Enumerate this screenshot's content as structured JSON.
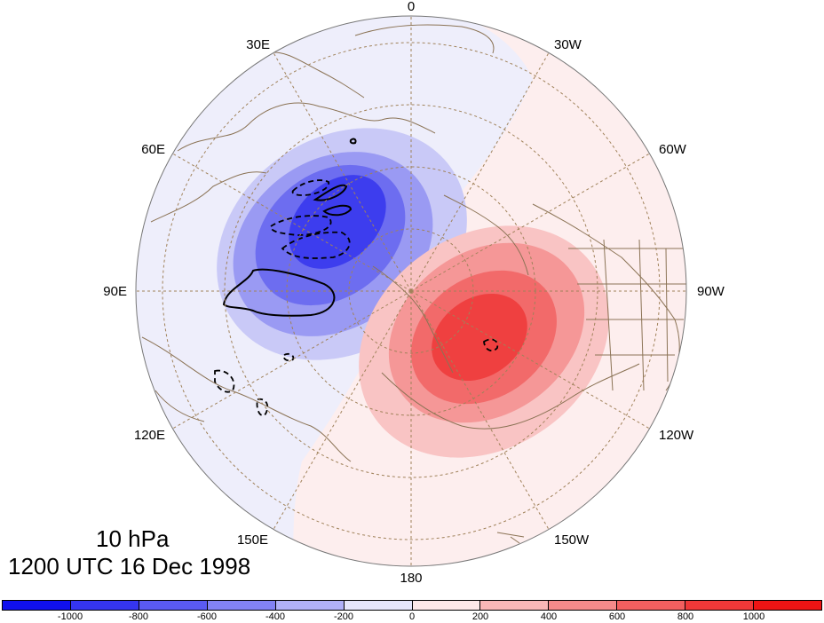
{
  "title": {
    "level": "10 hPa",
    "time": "1200 UTC 16 Dec 1998"
  },
  "map": {
    "projection": "polar stereographic",
    "center": "North Pole",
    "longitude_labels": [
      "0",
      "30W",
      "60W",
      "90W",
      "120W",
      "150W",
      "180",
      "150E",
      "120E",
      "90E",
      "60E",
      "30E"
    ],
    "background_color": "#eeeefb",
    "coastline_color": "#8b7355",
    "graticule_color": "#a0825a"
  },
  "legend": {
    "colors": [
      "#1010ee",
      "#3535f0",
      "#5a5af2",
      "#8282f5",
      "#b0b0f8",
      "#e6e6fb",
      "#fde9e9",
      "#f9b7b7",
      "#f58a8a",
      "#f25f5f",
      "#ef3838",
      "#ee1414"
    ],
    "labels": [
      "-1000",
      "-800",
      "-600",
      "-400",
      "-200",
      "0",
      "200",
      "400",
      "600",
      "800",
      "1000"
    ]
  }
}
